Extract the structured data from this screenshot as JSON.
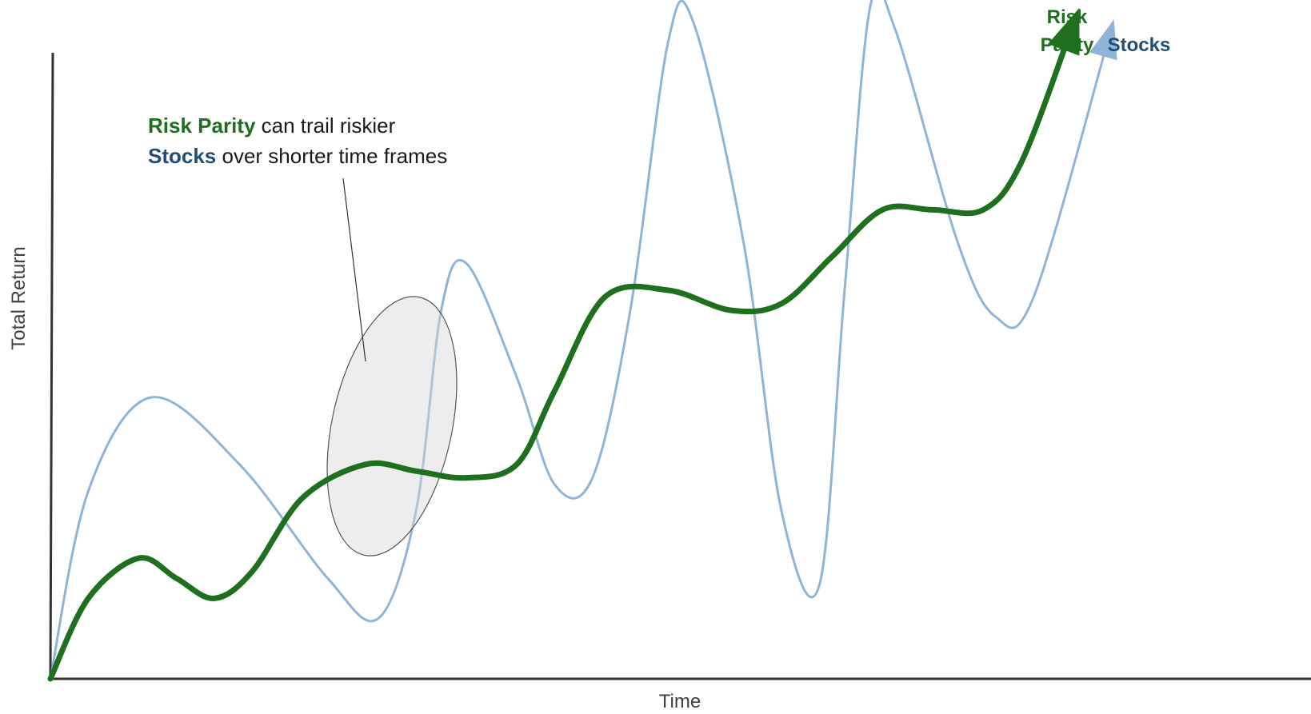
{
  "chart_data": {
    "type": "line",
    "xlabel": "Time",
    "ylabel": "Total Return",
    "grid": false,
    "xlim": [
      0,
      100
    ],
    "ylim": [
      0,
      100
    ],
    "series": [
      {
        "name": "Stocks",
        "color": "#8fb4d6",
        "line_weight": "thin",
        "end_marker": "arrow",
        "points": [
          [
            0,
            0
          ],
          [
            3,
            28
          ],
          [
            8,
            42
          ],
          [
            15,
            32
          ],
          [
            22,
            15
          ],
          [
            26,
            9
          ],
          [
            29,
            25
          ],
          [
            31,
            55
          ],
          [
            33,
            62
          ],
          [
            37,
            45
          ],
          [
            40,
            29
          ],
          [
            43,
            30
          ],
          [
            46,
            55
          ],
          [
            49,
            95
          ],
          [
            51,
            98
          ],
          [
            55,
            65
          ],
          [
            58,
            25
          ],
          [
            61,
            14
          ],
          [
            63,
            58
          ],
          [
            65,
            100
          ],
          [
            67,
            97
          ],
          [
            72,
            65
          ],
          [
            75,
            54
          ],
          [
            78,
            57
          ],
          [
            84,
            96
          ]
        ]
      },
      {
        "name": "Risk Parity",
        "color": "#1e6f1e",
        "line_weight": "thick",
        "end_marker": "arrow",
        "points": [
          [
            0,
            0
          ],
          [
            3,
            12
          ],
          [
            7,
            18
          ],
          [
            10,
            15
          ],
          [
            13,
            12
          ],
          [
            16,
            16
          ],
          [
            20,
            27
          ],
          [
            25,
            32
          ],
          [
            29,
            31
          ],
          [
            33,
            30
          ],
          [
            37,
            32
          ],
          [
            40,
            43
          ],
          [
            44,
            57
          ],
          [
            49,
            58
          ],
          [
            54,
            55
          ],
          [
            58,
            56
          ],
          [
            62,
            63
          ],
          [
            66,
            70
          ],
          [
            70,
            70
          ],
          [
            74,
            70
          ],
          [
            77,
            77
          ],
          [
            81,
            97
          ]
        ]
      }
    ],
    "annotation": {
      "line1": {
        "part1": "Risk Parity",
        "part2": " can trail riskier"
      },
      "line2": {
        "part1": "Stocks",
        "part2": " over shorter time frames"
      },
      "target_x": [
        26,
        32
      ]
    },
    "end_labels": {
      "risk_parity_line1": "Risk",
      "risk_parity_line2": "Parity",
      "stocks": "Stocks"
    },
    "colors": {
      "risk_parity": "#1e6f1e",
      "stocks": "#1f4e79",
      "stocks_line": "#8fb4d6",
      "axis": "#333333",
      "highlight_fill": "#d6d6d6",
      "annotation_text": "#1a1a1a"
    }
  }
}
